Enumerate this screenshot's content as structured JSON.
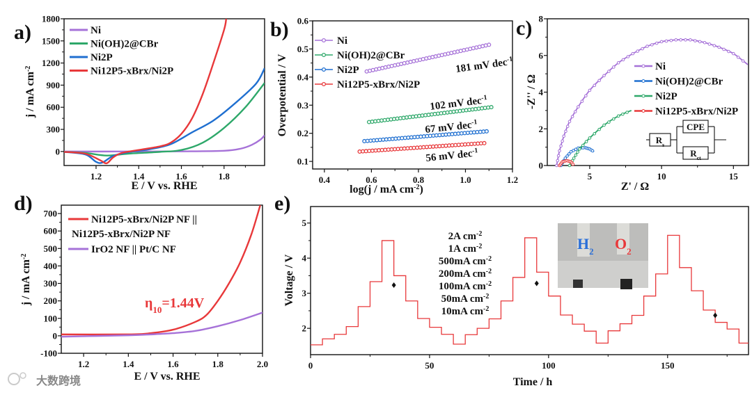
{
  "figure": {
    "panel_letters": [
      "a)",
      "b)",
      "c)",
      "d)",
      "e)"
    ],
    "watermark": "大数跨境"
  },
  "colors": {
    "purple": "#a672d8",
    "green": "#2ea86a",
    "blue": "#1f6fd0",
    "red": "#e8383a",
    "black": "#111111"
  },
  "chart_data": [
    {
      "type": "line",
      "xlabel": "E / V  vs. RHE",
      "ylabel": {
        "text": "j / mA cm",
        "sup": "-2"
      },
      "xlim": [
        1.05,
        1.99
      ],
      "ylim": [
        -190,
        1800
      ],
      "xticks": [
        1.2,
        1.4,
        1.6,
        1.8
      ],
      "xtick_labels": [
        "1.2",
        "1.4",
        "1.6",
        "1.8"
      ],
      "yticks": [
        0,
        300,
        600,
        900,
        1200,
        1500,
        1800
      ],
      "ytick_labels": [
        "0",
        "300",
        "600",
        "900",
        "1200",
        "1500",
        "1800"
      ],
      "legend": "top-left",
      "series": [
        {
          "name": "Ni",
          "color": "#a672d8",
          "points": [
            [
              1.05,
              0
            ],
            [
              1.3,
              0
            ],
            [
              1.6,
              2
            ],
            [
              1.8,
              10
            ],
            [
              1.88,
              40
            ],
            [
              1.93,
              90
            ],
            [
              1.97,
              160
            ],
            [
              1.99,
              220
            ]
          ]
        },
        {
          "name": "Ni(OH)2@CBr",
          "color": "#2ea86a",
          "points": [
            [
              1.05,
              -5
            ],
            [
              1.15,
              -20
            ],
            [
              1.25,
              -55
            ],
            [
              1.35,
              -30
            ],
            [
              1.5,
              -5
            ],
            [
              1.6,
              20
            ],
            [
              1.7,
              120
            ],
            [
              1.8,
              320
            ],
            [
              1.9,
              600
            ],
            [
              1.99,
              930
            ]
          ]
        },
        {
          "name": "Ni2P",
          "color": "#1f6fd0",
          "points": [
            [
              1.05,
              -5
            ],
            [
              1.15,
              -40
            ],
            [
              1.2,
              -140
            ],
            [
              1.23,
              -150
            ],
            [
              1.28,
              -60
            ],
            [
              1.35,
              -10
            ],
            [
              1.45,
              30
            ],
            [
              1.55,
              100
            ],
            [
              1.65,
              260
            ],
            [
              1.75,
              420
            ],
            [
              1.85,
              650
            ],
            [
              1.95,
              920
            ],
            [
              1.99,
              1130
            ]
          ]
        },
        {
          "name": "Ni12P5-xBrx/Ni2P",
          "color": "#e8383a",
          "points": [
            [
              1.05,
              -5
            ],
            [
              1.15,
              -30
            ],
            [
              1.22,
              -120
            ],
            [
              1.25,
              -160
            ],
            [
              1.28,
              -80
            ],
            [
              1.32,
              -20
            ],
            [
              1.4,
              20
            ],
            [
              1.5,
              70
            ],
            [
              1.55,
              120
            ],
            [
              1.6,
              240
            ],
            [
              1.65,
              450
            ],
            [
              1.7,
              780
            ],
            [
              1.75,
              1200
            ],
            [
              1.8,
              1650
            ],
            [
              1.81,
              1800
            ]
          ]
        }
      ]
    },
    {
      "type": "scatter",
      "xlabel": {
        "text": "log(j / mA cm",
        "sup": "-2",
        "tail": ")"
      },
      "ylabel": "Overpotential / V",
      "xlim": [
        0.35,
        1.2
      ],
      "ylim": [
        0.073,
        0.6
      ],
      "xticks": [
        0.4,
        0.6,
        0.8,
        1.0,
        1.2
      ],
      "xtick_labels": [
        "0.4",
        "0.6",
        "0.8",
        "1.0",
        "1.2"
      ],
      "yticks": [
        0.1,
        0.2,
        0.3,
        0.4,
        0.5,
        0.6
      ],
      "ytick_labels": [
        "0.1",
        "0.2",
        "0.3",
        "0.4",
        "0.5",
        "0.6"
      ],
      "legend": "top-left",
      "series": [
        {
          "name": "Ni",
          "color": "#a672d8",
          "x": [
            0.58,
            1.1
          ],
          "y": [
            0.42,
            0.515
          ],
          "n_points": 40,
          "tafel": {
            "text": "181 mV dec",
            "sup": "-1"
          }
        },
        {
          "name": "Ni(OH)2@CBr",
          "color": "#2ea86a",
          "x": [
            0.59,
            1.11
          ],
          "y": [
            0.24,
            0.293
          ],
          "n_points": 40,
          "tafel": {
            "text": "102 mV dec",
            "sup": "-1"
          }
        },
        {
          "name": "Ni2P",
          "color": "#1f6fd0",
          "x": [
            0.57,
            1.09
          ],
          "y": [
            0.172,
            0.207
          ],
          "n_points": 40,
          "tafel": {
            "text": "67 mV dec",
            "sup": "-1"
          }
        },
        {
          "name": "Ni12P5-xBrx/Ni2P",
          "color": "#e8383a",
          "x": [
            0.55,
            1.08
          ],
          "y": [
            0.135,
            0.165
          ],
          "n_points": 40,
          "tafel": {
            "text": "56 mV dec",
            "sup": "-1"
          }
        }
      ]
    },
    {
      "type": "scatter",
      "xlabel": "Z' / Ω",
      "ylabel": "-Z'' / Ω",
      "xlim": [
        2.05,
        16.05
      ],
      "ylim": [
        0,
        8
      ],
      "xticks": [
        5,
        10,
        15
      ],
      "xtick_labels": [
        "5",
        "10",
        "15"
      ],
      "yticks": [
        0,
        2,
        4,
        6,
        8
      ],
      "ytick_labels": [
        "0",
        "2",
        "4",
        "6",
        "8"
      ],
      "legend": "center-right",
      "circuit": {
        "rs": "R",
        "rs_sub": "s",
        "cpe": "CPE",
        "rct": "R",
        "rct_sub": "ct"
      },
      "series": [
        {
          "name": "Ni",
          "color": "#a672d8",
          "points": [
            [
              2.7,
              0
            ],
            [
              2.9,
              0.8
            ],
            [
              3.2,
              1.6
            ],
            [
              3.6,
              2.4
            ],
            [
              4.2,
              3.2
            ],
            [
              5,
              4.1
            ],
            [
              6,
              4.9
            ],
            [
              7,
              5.6
            ],
            [
              8,
              6.1
            ],
            [
              9,
              6.5
            ],
            [
              10,
              6.75
            ],
            [
              11,
              6.85
            ],
            [
              12,
              6.85
            ],
            [
              13,
              6.7
            ],
            [
              14,
              6.45
            ],
            [
              15,
              6.1
            ],
            [
              16,
              5.5
            ]
          ]
        },
        {
          "name": "Ni(OH)2@CBr",
          "color": "#1f6fd0",
          "points": [
            [
              3,
              0
            ],
            [
              3.3,
              0.4
            ],
            [
              3.7,
              0.75
            ],
            [
              4.2,
              0.95
            ],
            [
              4.7,
              0.97
            ],
            [
              5.0,
              0.9
            ],
            [
              5.3,
              0.75
            ]
          ]
        },
        {
          "name": "Ni2P",
          "color": "#2ea86a",
          "points": [
            [
              3.6,
              0
            ],
            [
              3.9,
              0.4
            ],
            [
              4.3,
              0.9
            ],
            [
              5,
              1.5
            ],
            [
              6,
              2.2
            ],
            [
              7,
              2.7
            ],
            [
              7.9,
              3.0
            ]
          ]
        },
        {
          "name": "Ni12P5-xBrx/Ni2P",
          "color": "#e8383a",
          "points": [
            [
              2.9,
              0
            ],
            [
              3.1,
              0.2
            ],
            [
              3.4,
              0.27
            ],
            [
              3.7,
              0.2
            ],
            [
              3.9,
              0
            ]
          ]
        }
      ]
    },
    {
      "type": "line",
      "xlabel": "E / V  vs. RHE",
      "ylabel": {
        "text": "j / mA cm",
        "sup": "-2"
      },
      "xlim": [
        1.1,
        2.0
      ],
      "ylim": [
        -100,
        748
      ],
      "xticks": [
        1.2,
        1.4,
        1.6,
        1.8,
        2.0
      ],
      "xtick_labels": [
        "1.2",
        "1.4",
        "1.6",
        "1.8",
        "2.0"
      ],
      "yticks": [
        -100,
        0,
        100,
        200,
        300,
        400,
        500,
        600,
        700
      ],
      "ytick_labels": [
        "-100",
        "0",
        "100",
        "200",
        "300",
        "400",
        "500",
        "600",
        "700"
      ],
      "legend": "top-left",
      "annotation": {
        "eta": "η",
        "sub": "10",
        "value": "=1.44V"
      },
      "series": [
        {
          "name_lines": [
            "Ni12P5-xBrx/Ni2P NF ||",
            "Ni12P5-xBrx/Ni2P NF"
          ],
          "color": "#e8383a",
          "points": [
            [
              1.1,
              8
            ],
            [
              1.4,
              8
            ],
            [
              1.5,
              15
            ],
            [
              1.6,
              35
            ],
            [
              1.7,
              80
            ],
            [
              1.75,
              120
            ],
            [
              1.8,
              200
            ],
            [
              1.85,
              300
            ],
            [
              1.9,
              420
            ],
            [
              1.95,
              580
            ],
            [
              1.99,
              748
            ]
          ]
        },
        {
          "name_lines": [
            "IrO2 NF || Pt/C NF"
          ],
          "color": "#a672d8",
          "points": [
            [
              1.1,
              -5
            ],
            [
              1.4,
              3
            ],
            [
              1.5,
              8
            ],
            [
              1.6,
              15
            ],
            [
              1.7,
              28
            ],
            [
              1.8,
              55
            ],
            [
              1.9,
              90
            ],
            [
              2.0,
              133
            ]
          ]
        }
      ]
    },
    {
      "type": "line",
      "xlabel": "Time / h",
      "ylabel": "Voltage / V",
      "xlim": [
        0,
        184
      ],
      "ylim": [
        1.25,
        5.47
      ],
      "xticks": [
        0,
        50,
        100,
        150
      ],
      "xtick_labels": [
        "0",
        "50",
        "100",
        "150"
      ],
      "yticks": [
        2,
        3,
        4,
        5
      ],
      "ytick_labels": [
        "2",
        "3",
        "4",
        "5"
      ],
      "step_hours": 5,
      "series": [
        {
          "name": "voltage",
          "color": "#e8383a",
          "levels": [
            1.53,
            1.7,
            1.83,
            2.05,
            2.62,
            3.33,
            4.5,
            3.5,
            2.78,
            2.28,
            2.03,
            1.83,
            1.55,
            1.82,
            2.0,
            2.27,
            2.78,
            3.45,
            4.58,
            3.6,
            2.92,
            2.38,
            2.12,
            1.92,
            1.58,
            1.93,
            2.13,
            2.37,
            2.92,
            3.55,
            4.65,
            3.73,
            3.07,
            2.52,
            2.17,
            1.98,
            1.58
          ]
        }
      ],
      "markers": [
        [
          35,
          3.23
        ],
        [
          95,
          3.28
        ],
        [
          170,
          2.37
        ]
      ],
      "current_labels": [
        {
          "text": "2A cm",
          "sup": "-2",
          "color": "#e8383a"
        },
        {
          "text": "1A cm",
          "sup": "-2",
          "color": "#e88a3a"
        },
        {
          "text": "500mA cm",
          "sup": "-2",
          "color": "#e8b84a"
        },
        {
          "text": "200mA cm",
          "sup": "-2",
          "color": "#dcd84a"
        },
        {
          "text": "100mA cm",
          "sup": "-2",
          "color": "#a8d838"
        },
        {
          "text": "50mA cm",
          "sup": "-2",
          "color": "#22c02a"
        },
        {
          "text": "10mA cm",
          "sup": "-2",
          "color": "#1ec8a0"
        }
      ],
      "inset": {
        "h2": "H",
        "h2_sub": "2",
        "o2": "O",
        "o2_sub": "2"
      }
    }
  ]
}
